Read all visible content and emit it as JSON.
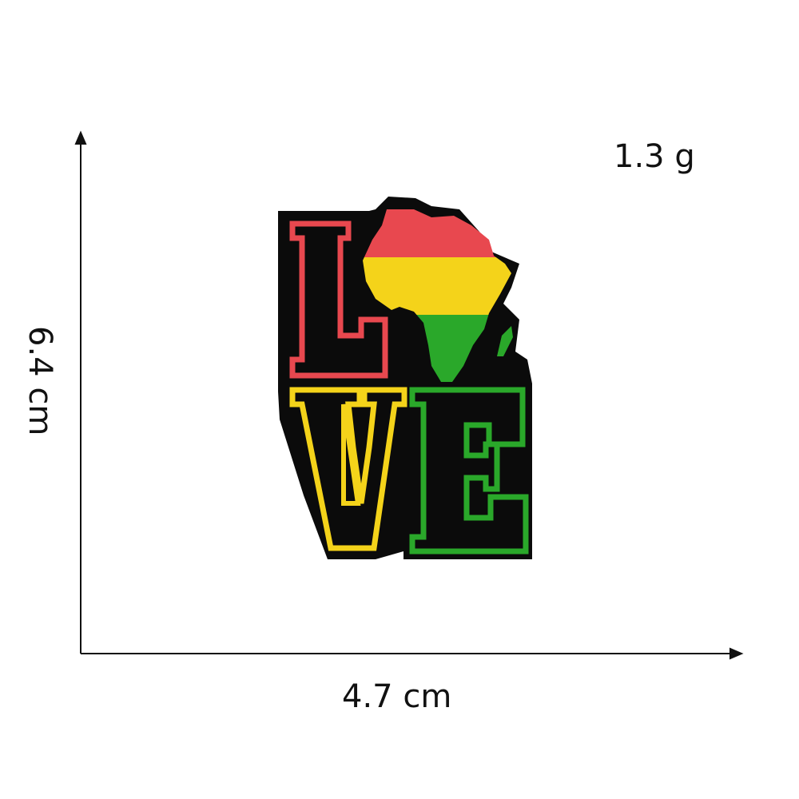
{
  "product": {
    "weight": "1.3 g",
    "width": "4.7 cm",
    "height": "6.4 cm",
    "word": "LOVE",
    "colors": {
      "outline_fill": "#0b0b0b",
      "red": "#e8484f",
      "yellow": "#f4d31a",
      "green": "#2aa82a"
    }
  }
}
